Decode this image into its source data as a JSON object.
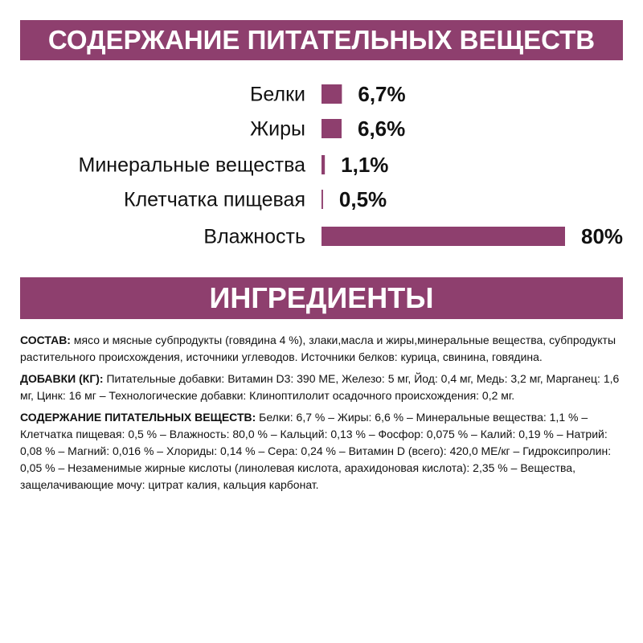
{
  "chart_data": {
    "type": "bar",
    "orientation": "horizontal",
    "title": "СОДЕРЖАНИЕ ПИТАТЕЛЬНЫХ ВЕЩЕСТВ",
    "categories": [
      "Белки",
      "Жиры",
      "Минеральные вещества",
      "Клетчатка пищевая",
      "Влажность"
    ],
    "values": [
      6.7,
      6.6,
      1.1,
      0.5,
      80
    ],
    "value_labels": [
      "6,7%",
      "6,6%",
      "1,1%",
      "0,5%",
      "80%"
    ],
    "color": "#8e3f6e"
  },
  "ingredients": {
    "heading": "ИНГРЕДИЕНТЫ",
    "paragraphs": [
      {
        "label": "СОСТАВ:",
        "text": "мясо и мясные субпродукты (говядина 4 %), злаки,масла и жиры,минеральные вещества, субпродукты растительного происхождения, источники углеводов. Источники белков: курица, свинина, говядина."
      },
      {
        "label": "ДОБАВКИ (КГ):",
        "text": "Питательные добавки: Витамин D3: 390 МЕ, Железо: 5 мг, Йод: 0,4 мг, Медь: 3,2 мг, Марганец: 1,6 мг, Цинк: 16 мг – Технологические добавки: Клиноптилолит осадочного происхождения: 0,2 мг."
      },
      {
        "label": "СОДЕРЖАНИЕ ПИТАТЕЛЬНЫХ ВЕЩЕСТВ:",
        "text": "Белки: 6,7 % – Жиры: 6,6 % – Минеральные вещества: 1,1 % – Клетчатка пищевая: 0,5 % – Влажность: 80,0 % – Кальций: 0,13 % – Фосфор: 0,075 % – Калий: 0,19 % – Натрий: 0,08 % – Магний: 0,016 % – Хлориды: 0,14 % – Сера: 0,24 % – Витамин D (всего): 420,0 МЕ/кг – Гидроксипролин: 0,05 % – Незаменимые жирные кислоты (линолевая кислота, арахидоновая кислота): 2,35 % – Вещества, защелачивающие мочу: цитрат калия, кальция карбонат."
      }
    ]
  }
}
